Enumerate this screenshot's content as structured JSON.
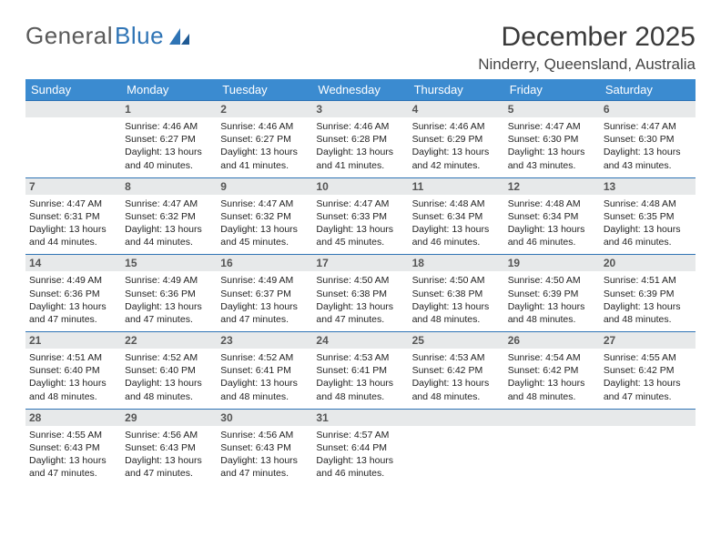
{
  "brand": {
    "part1": "General",
    "part2": "Blue"
  },
  "title": "December 2025",
  "location": "Ninderry, Queensland, Australia",
  "colors": {
    "header_bg": "#3b8bd0",
    "header_text": "#ffffff",
    "daynum_bg": "#e7e9ea",
    "daynum_border": "#2f74b5",
    "brand_blue": "#2f74b5",
    "text": "#222222",
    "background": "#ffffff"
  },
  "typography": {
    "title_fontsize": 30,
    "location_fontsize": 17,
    "weekday_fontsize": 13,
    "daynum_fontsize": 12,
    "info_fontsize": 10.5,
    "font_family": "Arial"
  },
  "weekdays": [
    "Sunday",
    "Monday",
    "Tuesday",
    "Wednesday",
    "Thursday",
    "Friday",
    "Saturday"
  ],
  "weeks": [
    [
      {
        "day": null
      },
      {
        "day": "1",
        "sunrise": "4:46 AM",
        "sunset": "6:27 PM",
        "daylight": "13 hours and 40 minutes."
      },
      {
        "day": "2",
        "sunrise": "4:46 AM",
        "sunset": "6:27 PM",
        "daylight": "13 hours and 41 minutes."
      },
      {
        "day": "3",
        "sunrise": "4:46 AM",
        "sunset": "6:28 PM",
        "daylight": "13 hours and 41 minutes."
      },
      {
        "day": "4",
        "sunrise": "4:46 AM",
        "sunset": "6:29 PM",
        "daylight": "13 hours and 42 minutes."
      },
      {
        "day": "5",
        "sunrise": "4:47 AM",
        "sunset": "6:30 PM",
        "daylight": "13 hours and 43 minutes."
      },
      {
        "day": "6",
        "sunrise": "4:47 AM",
        "sunset": "6:30 PM",
        "daylight": "13 hours and 43 minutes."
      }
    ],
    [
      {
        "day": "7",
        "sunrise": "4:47 AM",
        "sunset": "6:31 PM",
        "daylight": "13 hours and 44 minutes."
      },
      {
        "day": "8",
        "sunrise": "4:47 AM",
        "sunset": "6:32 PM",
        "daylight": "13 hours and 44 minutes."
      },
      {
        "day": "9",
        "sunrise": "4:47 AM",
        "sunset": "6:32 PM",
        "daylight": "13 hours and 45 minutes."
      },
      {
        "day": "10",
        "sunrise": "4:47 AM",
        "sunset": "6:33 PM",
        "daylight": "13 hours and 45 minutes."
      },
      {
        "day": "11",
        "sunrise": "4:48 AM",
        "sunset": "6:34 PM",
        "daylight": "13 hours and 46 minutes."
      },
      {
        "day": "12",
        "sunrise": "4:48 AM",
        "sunset": "6:34 PM",
        "daylight": "13 hours and 46 minutes."
      },
      {
        "day": "13",
        "sunrise": "4:48 AM",
        "sunset": "6:35 PM",
        "daylight": "13 hours and 46 minutes."
      }
    ],
    [
      {
        "day": "14",
        "sunrise": "4:49 AM",
        "sunset": "6:36 PM",
        "daylight": "13 hours and 47 minutes."
      },
      {
        "day": "15",
        "sunrise": "4:49 AM",
        "sunset": "6:36 PM",
        "daylight": "13 hours and 47 minutes."
      },
      {
        "day": "16",
        "sunrise": "4:49 AM",
        "sunset": "6:37 PM",
        "daylight": "13 hours and 47 minutes."
      },
      {
        "day": "17",
        "sunrise": "4:50 AM",
        "sunset": "6:38 PM",
        "daylight": "13 hours and 47 minutes."
      },
      {
        "day": "18",
        "sunrise": "4:50 AM",
        "sunset": "6:38 PM",
        "daylight": "13 hours and 48 minutes."
      },
      {
        "day": "19",
        "sunrise": "4:50 AM",
        "sunset": "6:39 PM",
        "daylight": "13 hours and 48 minutes."
      },
      {
        "day": "20",
        "sunrise": "4:51 AM",
        "sunset": "6:39 PM",
        "daylight": "13 hours and 48 minutes."
      }
    ],
    [
      {
        "day": "21",
        "sunrise": "4:51 AM",
        "sunset": "6:40 PM",
        "daylight": "13 hours and 48 minutes."
      },
      {
        "day": "22",
        "sunrise": "4:52 AM",
        "sunset": "6:40 PM",
        "daylight": "13 hours and 48 minutes."
      },
      {
        "day": "23",
        "sunrise": "4:52 AM",
        "sunset": "6:41 PM",
        "daylight": "13 hours and 48 minutes."
      },
      {
        "day": "24",
        "sunrise": "4:53 AM",
        "sunset": "6:41 PM",
        "daylight": "13 hours and 48 minutes."
      },
      {
        "day": "25",
        "sunrise": "4:53 AM",
        "sunset": "6:42 PM",
        "daylight": "13 hours and 48 minutes."
      },
      {
        "day": "26",
        "sunrise": "4:54 AM",
        "sunset": "6:42 PM",
        "daylight": "13 hours and 48 minutes."
      },
      {
        "day": "27",
        "sunrise": "4:55 AM",
        "sunset": "6:42 PM",
        "daylight": "13 hours and 47 minutes."
      }
    ],
    [
      {
        "day": "28",
        "sunrise": "4:55 AM",
        "sunset": "6:43 PM",
        "daylight": "13 hours and 47 minutes."
      },
      {
        "day": "29",
        "sunrise": "4:56 AM",
        "sunset": "6:43 PM",
        "daylight": "13 hours and 47 minutes."
      },
      {
        "day": "30",
        "sunrise": "4:56 AM",
        "sunset": "6:43 PM",
        "daylight": "13 hours and 47 minutes."
      },
      {
        "day": "31",
        "sunrise": "4:57 AM",
        "sunset": "6:44 PM",
        "daylight": "13 hours and 46 minutes."
      },
      {
        "day": null
      },
      {
        "day": null
      },
      {
        "day": null
      }
    ]
  ],
  "labels": {
    "sunrise": "Sunrise:",
    "sunset": "Sunset:",
    "daylight": "Daylight:"
  }
}
